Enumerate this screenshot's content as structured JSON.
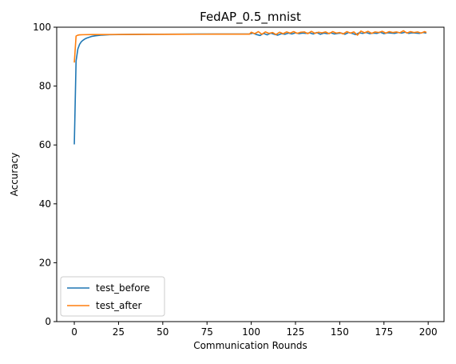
{
  "chart_data": {
    "type": "line",
    "title": "FedAP_0.5_mnist",
    "xlabel": "Communication Rounds",
    "ylabel": "Accuracy",
    "xlim": [
      -9.95,
      208.95
    ],
    "ylim": [
      0,
      100
    ],
    "xticks": [
      0,
      25,
      50,
      75,
      100,
      125,
      150,
      175,
      200
    ],
    "yticks": [
      0,
      20,
      40,
      60,
      80,
      100
    ],
    "grid": false,
    "legend_position": "lower-left",
    "x_range": [
      0,
      199
    ],
    "series": [
      {
        "name": "test_before",
        "color": "#1f77b4",
        "points": [
          [
            0,
            60.2
          ],
          [
            1,
            88.5
          ],
          [
            2,
            92.6
          ],
          [
            3,
            94.2
          ],
          [
            4,
            95.1
          ],
          [
            5,
            95.6
          ],
          [
            6,
            96.0
          ],
          [
            7,
            96.3
          ],
          [
            8,
            96.5
          ],
          [
            9,
            96.7
          ],
          [
            10,
            96.9
          ],
          [
            12,
            97.1
          ],
          [
            15,
            97.3
          ],
          [
            20,
            97.45
          ],
          [
            25,
            97.5
          ],
          [
            30,
            97.55
          ],
          [
            40,
            97.6
          ],
          [
            50,
            97.62
          ],
          [
            60,
            97.65
          ],
          [
            70,
            97.66
          ],
          [
            80,
            97.67
          ],
          [
            90,
            97.68
          ],
          [
            99,
            97.7
          ],
          [
            101,
            98.0
          ],
          [
            103,
            97.5
          ],
          [
            105,
            97.2
          ],
          [
            107,
            97.9
          ],
          [
            109,
            97.4
          ],
          [
            111,
            98.0
          ],
          [
            113,
            97.6
          ],
          [
            115,
            97.3
          ],
          [
            117,
            97.8
          ],
          [
            119,
            97.6
          ],
          [
            121,
            98.0
          ],
          [
            123,
            97.7
          ],
          [
            125,
            98.1
          ],
          [
            127,
            97.8
          ],
          [
            129,
            98.0
          ],
          [
            131,
            97.9
          ],
          [
            133,
            98.1
          ],
          [
            135,
            97.7
          ],
          [
            137,
            98.2
          ],
          [
            139,
            97.6
          ],
          [
            141,
            98.0
          ],
          [
            143,
            97.8
          ],
          [
            145,
            98.1
          ],
          [
            147,
            97.7
          ],
          [
            149,
            97.9
          ],
          [
            151,
            98.0
          ],
          [
            153,
            97.6
          ],
          [
            155,
            98.2
          ],
          [
            157,
            97.9
          ],
          [
            159,
            97.5
          ],
          [
            161,
            98.1
          ],
          [
            163,
            97.9
          ],
          [
            165,
            98.2
          ],
          [
            167,
            97.8
          ],
          [
            169,
            98.0
          ],
          [
            171,
            97.9
          ],
          [
            173,
            98.3
          ],
          [
            175,
            97.8
          ],
          [
            177,
            98.1
          ],
          [
            179,
            98.0
          ],
          [
            181,
            97.9
          ],
          [
            183,
            98.2
          ],
          [
            185,
            98.0
          ],
          [
            187,
            98.3
          ],
          [
            189,
            97.9
          ],
          [
            191,
            98.1
          ],
          [
            193,
            98.0
          ],
          [
            195,
            97.9
          ],
          [
            197,
            98.2
          ],
          [
            199,
            98.0
          ]
        ]
      },
      {
        "name": "test_after",
        "color": "#ff7f0e",
        "points": [
          [
            0,
            88.0
          ],
          [
            1,
            97.0
          ],
          [
            2,
            97.3
          ],
          [
            3,
            97.4
          ],
          [
            5,
            97.45
          ],
          [
            10,
            97.5
          ],
          [
            15,
            97.5
          ],
          [
            20,
            97.52
          ],
          [
            30,
            97.55
          ],
          [
            40,
            97.57
          ],
          [
            50,
            97.58
          ],
          [
            60,
            97.6
          ],
          [
            70,
            97.62
          ],
          [
            80,
            97.63
          ],
          [
            90,
            97.64
          ],
          [
            99,
            97.65
          ],
          [
            100,
            98.3
          ],
          [
            102,
            97.8
          ],
          [
            104,
            98.5
          ],
          [
            106,
            97.6
          ],
          [
            108,
            98.4
          ],
          [
            110,
            97.9
          ],
          [
            112,
            98.2
          ],
          [
            114,
            97.5
          ],
          [
            116,
            98.3
          ],
          [
            118,
            97.8
          ],
          [
            120,
            98.4
          ],
          [
            122,
            98.0
          ],
          [
            124,
            98.5
          ],
          [
            126,
            97.9
          ],
          [
            128,
            98.3
          ],
          [
            130,
            98.4
          ],
          [
            132,
            97.8
          ],
          [
            134,
            98.6
          ],
          [
            136,
            97.9
          ],
          [
            138,
            98.3
          ],
          [
            140,
            98.1
          ],
          [
            142,
            98.4
          ],
          [
            144,
            97.8
          ],
          [
            146,
            98.5
          ],
          [
            148,
            98.0
          ],
          [
            150,
            98.2
          ],
          [
            152,
            97.7
          ],
          [
            154,
            98.5
          ],
          [
            156,
            98.0
          ],
          [
            158,
            98.4
          ],
          [
            160,
            97.3
          ],
          [
            162,
            98.7
          ],
          [
            164,
            98.1
          ],
          [
            166,
            98.6
          ],
          [
            168,
            97.9
          ],
          [
            170,
            98.4
          ],
          [
            172,
            98.2
          ],
          [
            174,
            98.6
          ],
          [
            176,
            98.0
          ],
          [
            178,
            98.5
          ],
          [
            180,
            98.2
          ],
          [
            182,
            98.4
          ],
          [
            184,
            98.1
          ],
          [
            186,
            98.8
          ],
          [
            188,
            98.0
          ],
          [
            190,
            98.5
          ],
          [
            192,
            98.2
          ],
          [
            194,
            98.4
          ],
          [
            196,
            98.0
          ],
          [
            198,
            98.5
          ],
          [
            199,
            98.2
          ]
        ]
      }
    ]
  }
}
